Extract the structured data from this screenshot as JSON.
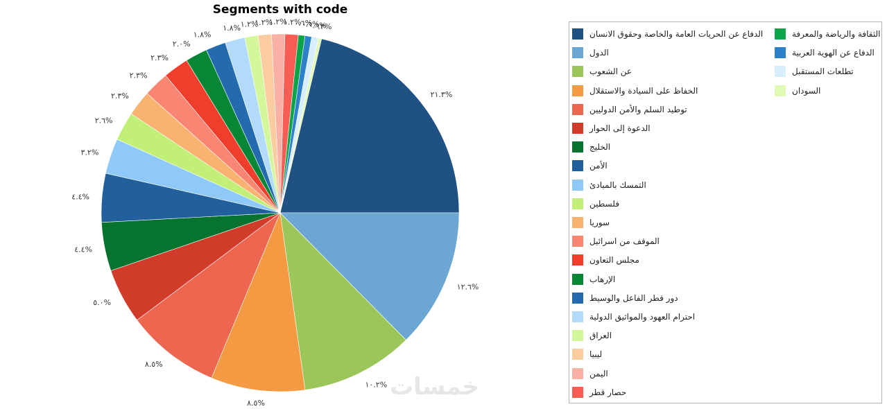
{
  "watermark": "خمسات",
  "chart_data": {
    "type": "pie",
    "title": "Segments with code",
    "legend_position": "right",
    "series": [
      {
        "name": "الدفاع عن الحريات العامة والخاصة وحقوق الانسان",
        "value": 21.3,
        "label": "٢١.٣%",
        "color": "#1f5282"
      },
      {
        "name": "الدول",
        "value": 12.6,
        "label": "١٢.٦%",
        "color": "#6ca6d3"
      },
      {
        "name": "عن الشعوب",
        "value": 10.2,
        "label": "١٠.٢%",
        "color": "#9cc65a"
      },
      {
        "name": "الخفاظ على السيادة والاستقلال",
        "value": 8.5,
        "label": "٨.٥%",
        "color": "#f39a42"
      },
      {
        "name": "توطيد السلم والأمن الدوليين",
        "value": 8.5,
        "label": "٨.٥%",
        "color": "#ec6650"
      },
      {
        "name": "الدعوة إلى الحوار",
        "value": 5.0,
        "label": "٥.٠%",
        "color": "#d13b2a"
      },
      {
        "name": "الخليج",
        "value": 4.4,
        "label": "٤.٤%",
        "color": "#06732f"
      },
      {
        "name": "الأمن",
        "value": 4.4,
        "label": "٤.٤%",
        "color": "#21609c"
      },
      {
        "name": "التمسك بالمبادئ",
        "value": 3.2,
        "label": "٣.٢%",
        "color": "#8ec9f7"
      },
      {
        "name": "فلسطين",
        "value": 2.6,
        "label": "٢.٦%",
        "color": "#c1ef78"
      },
      {
        "name": "سوريا",
        "value": 2.3,
        "label": "٢.٣%",
        "color": "#f9b270"
      },
      {
        "name": "الموقف من اسرائيل",
        "value": 2.3,
        "label": "٢.٣%",
        "color": "#f88672"
      },
      {
        "name": "مجلس التعاون",
        "value": 2.3,
        "label": "٢.٣%",
        "color": "#f03e2c"
      },
      {
        "name": "الإرهاب",
        "value": 2.0,
        "label": "٢.٠%",
        "color": "#078636"
      },
      {
        "name": "دور قطر الفاعل والوسيط",
        "value": 1.8,
        "label": "١.٨%",
        "color": "#236aaf"
      },
      {
        "name": "احترام العهود والمواثيق الدولية",
        "value": 1.8,
        "label": "١.٨%",
        "color": "#b1dbf9"
      },
      {
        "name": "العراق",
        "value": 1.2,
        "label": "١.٢%",
        "color": "#d3f79a"
      },
      {
        "name": "ليبيا",
        "value": 1.2,
        "label": "١.٢%",
        "color": "#fccca1"
      },
      {
        "name": "اليمن",
        "value": 1.2,
        "label": "١.٢%",
        "color": "#f9b1a5"
      },
      {
        "name": "حصار قطر",
        "value": 1.2,
        "label": "١.٢%",
        "color": "#f65e54"
      },
      {
        "name": "الثقافة والرياضة والمعرفة",
        "value": 0.6,
        "label": "٠.٦%",
        "color": "#0ca448"
      },
      {
        "name": "الدفاع عن الهوية العربية",
        "value": 0.6,
        "label": "٠.٦%",
        "color": "#2c81c9"
      },
      {
        "name": "تطلعات المستقبل",
        "value": 0.6,
        "label": "٠.٦%",
        "color": "#d8eefc"
      },
      {
        "name": "السودان",
        "value": 0.3,
        "label": "٠.٣%",
        "color": "#e2fab8"
      }
    ]
  }
}
